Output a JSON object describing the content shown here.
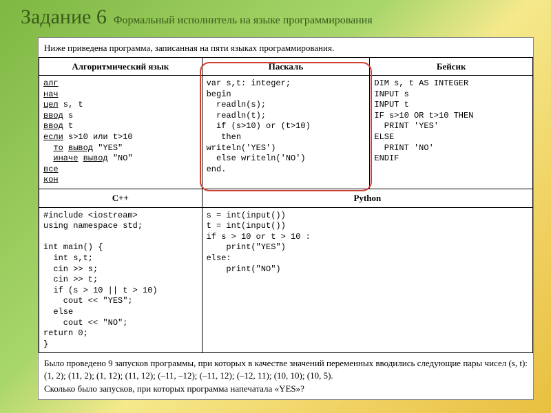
{
  "title": {
    "main": "Задание 6",
    "sub": "Формальный исполнитель на языке программирования"
  },
  "intro": "Ниже приведена программа, записанная на пяти языках программирования.",
  "headers": {
    "alg": "Алгоритмический язык",
    "pascal": "Паскаль",
    "basic": "Бейсик",
    "cpp": "C++",
    "python": "Python"
  },
  "code": {
    "alg": "алг\nнач\nцел s, t\nввод s\nввод t\nесли s>10 или t>10\n  то вывод \"YES\"\n  иначе вывод \"NO\"\nвсе\nкон",
    "alg_lines": [
      {
        "t": "алг",
        "u": true
      },
      {
        "t": "нач",
        "u": true
      },
      {
        "t": "цел s, t",
        "u": "цел"
      },
      {
        "t": "ввод s",
        "u": "ввод"
      },
      {
        "t": "ввод t",
        "u": "ввод"
      },
      {
        "t": "если s>10 или t>10",
        "u": "если"
      },
      {
        "t": "  то вывод \"YES\"",
        "u": "то вывод"
      },
      {
        "t": "  иначе вывод \"NO\"",
        "u": "иначе вывод"
      },
      {
        "t": "все",
        "u": true
      },
      {
        "t": "кон",
        "u": true
      }
    ],
    "pascal": "var s,t: integer;\nbegin\n  readln(s);\n  readln(t);\n  if (s>10) or (t>10)\n   then\nwriteln('YES')\n  else writeln('NO')\nend.",
    "basic": "DIM s, t AS INTEGER\nINPUT s\nINPUT t\nIF s>10 OR t>10 THEN\n  PRINT 'YES'\nELSE\n  PRINT 'NO'\nENDIF",
    "cpp": "#include <iostream>\nusing namespace std;\n\nint main() {\n  int s,t;\n  cin >> s;\n  cin >> t;\n  if (s > 10 || t > 10)\n    cout << \"YES\";\n  else\n    cout << \"NO\";\nreturn 0;\n}",
    "python": "s = int(input())\nt = int(input())\nif s > 10 or t > 10 :\n    print(\"YES\")\nelse:\n    print(\"NO\")"
  },
  "bottom": {
    "p1": "Было проведено 9 запусков программы, при которых в качестве значений переменных вводились следующие пары чисел (s, t):",
    "p2": "(1, 2); (11, 2); (1, 12); (11, 12); (–11, –12); (–11, 12); (–12, 11); (10, 10); (10, 5).",
    "p3": "Сколько было запусков, при которых программа напечатала «YES»?"
  },
  "colors": {
    "highlight_border": "#d04030",
    "title_color": "#3a5a1a"
  }
}
